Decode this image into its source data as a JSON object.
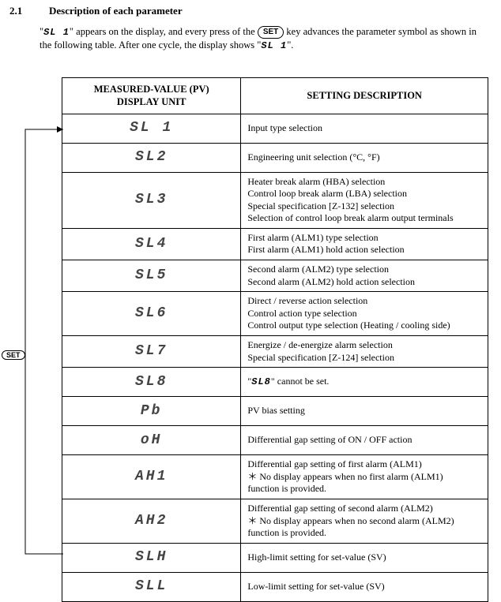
{
  "section": {
    "number": "2.1",
    "title": "Description of each parameter"
  },
  "intro": {
    "pre": "\"",
    "sym1": "SL 1",
    "mid1": "\" appears on the display, and every press of the ",
    "set": "SET",
    "mid2": " key advances the parameter symbol as shown in the following table.  After one cycle, the display shows \"",
    "sym2": "SL 1",
    "post": "\"."
  },
  "sideKey": "SET",
  "headers": {
    "left_l1": "MEASURED-VALUE (PV)",
    "left_l2": "DISPLAY UNIT",
    "right": "SETTING DESCRIPTION"
  },
  "rows": [
    {
      "disp": "SL 1",
      "desc": "Input type selection"
    },
    {
      "disp": "SL2",
      "desc": "Engineering unit selection (°C, °F)"
    },
    {
      "disp": "SL3",
      "desc": "Heater break alarm (HBA) selection\nControl loop break alarm (LBA) selection\nSpecial specification [Z-132] selection\nSelection of control loop break alarm output terminals"
    },
    {
      "disp": "SL4",
      "desc": "First alarm (ALM1) type selection\nFirst alarm (ALM1) hold action selection"
    },
    {
      "disp": "SL5",
      "desc": "Second alarm (ALM2) type selection\nSecond alarm (ALM2) hold action selection"
    },
    {
      "disp": "SL6",
      "desc": "Direct / reverse action selection\nControl action type selection\nControl output type selection (Heating / cooling side)"
    },
    {
      "disp": "SL7",
      "desc": "Energize / de-energize alarm selection\nSpecial specification [Z-124] selection"
    },
    {
      "disp": "SL8",
      "desc": "\"SL8\" cannot be set.",
      "inlineSeg": true
    },
    {
      "disp": "Pb",
      "desc": "PV bias setting"
    },
    {
      "disp": "oH",
      "desc": "Differential gap setting of ON / OFF action"
    },
    {
      "disp": "AH1",
      "desc": "Differential gap setting of first alarm (ALM1)\n＊ No display appears when no first alarm (ALM1)\n      function is provided."
    },
    {
      "disp": "AH2",
      "desc": "Differential gap setting of second alarm (ALM2)\n＊ No display appears when no second alarm (ALM2)\n      function is provided."
    },
    {
      "disp": "SLH",
      "desc": "High-limit setting for set-value (SV)"
    },
    {
      "disp": "SLL",
      "desc": "Low-limit setting for set-value (SV)"
    }
  ]
}
